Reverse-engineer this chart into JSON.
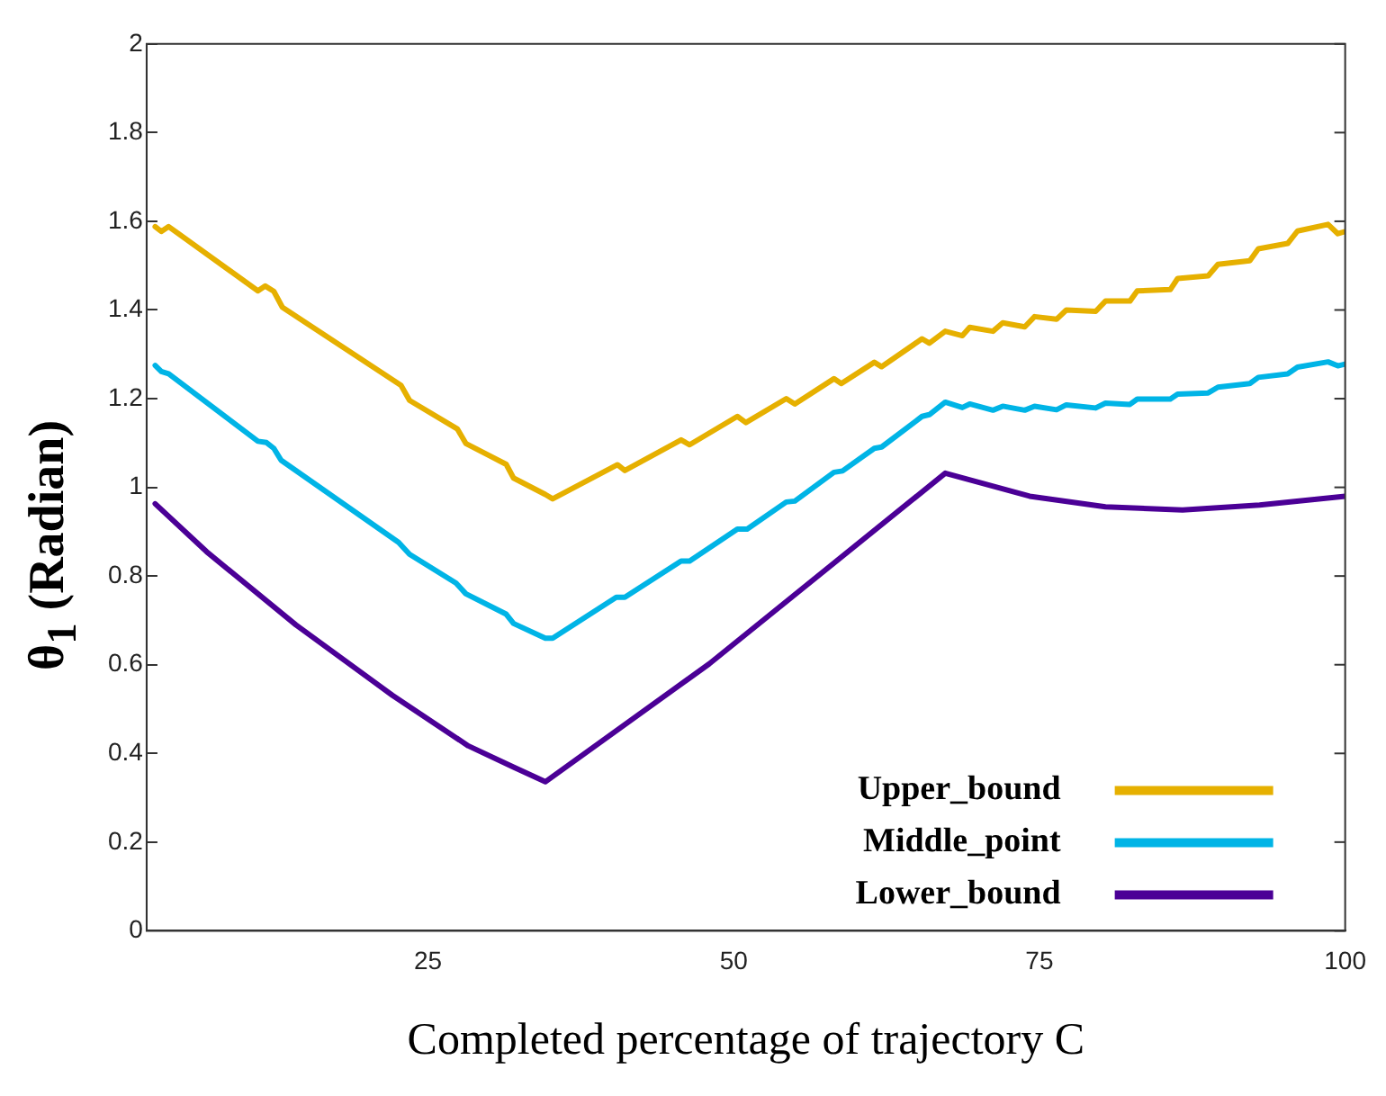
{
  "chart_data": {
    "type": "line",
    "xlabel": "Completed percentage of trajectory C",
    "ylabel": "θ$_{1}$ (Radian)",
    "xlim": [
      2,
      100
    ],
    "xticks": [
      25,
      50,
      75,
      100
    ],
    "ylim": [
      0,
      2
    ],
    "yticks": [
      0,
      0.2,
      0.4,
      0.6,
      0.8,
      1,
      1.2,
      1.4,
      1.6,
      1.8,
      2
    ],
    "grid": false,
    "legend": "bottom right",
    "marker": "none",
    "line_style": "solid",
    "series": [
      {
        "name": "Upper_bound",
        "color": "#e6b000",
        "x": [
          2.7,
          3.2,
          3.8,
          11.1,
          11.7,
          12.4,
          13.1,
          22.8,
          23.5,
          27.4,
          28.1,
          31.4,
          32.0,
          34.6,
          35.2,
          40.5,
          41.1,
          45.7,
          46.4,
          50.3,
          51.0,
          54.3,
          55.0,
          58.2,
          58.8,
          61.5,
          62.1,
          65.4,
          66.0,
          67.3,
          68.7,
          69.3,
          71.2,
          72.0,
          73.8,
          74.6,
          76.4,
          77.2,
          79.6,
          80.4,
          82.4,
          83.0,
          85.7,
          86.3,
          88.8,
          89.6,
          92.2,
          92.9,
          95.3,
          96.1,
          98.6,
          99.4,
          100
        ],
        "values": [
          1.588,
          1.577,
          1.588,
          1.443,
          1.454,
          1.442,
          1.406,
          1.23,
          1.196,
          1.132,
          1.099,
          1.052,
          1.021,
          0.984,
          0.974,
          1.051,
          1.038,
          1.107,
          1.096,
          1.16,
          1.146,
          1.2,
          1.188,
          1.245,
          1.234,
          1.282,
          1.272,
          1.335,
          1.325,
          1.352,
          1.342,
          1.361,
          1.352,
          1.371,
          1.362,
          1.385,
          1.379,
          1.4,
          1.397,
          1.42,
          1.42,
          1.443,
          1.446,
          1.471,
          1.477,
          1.503,
          1.511,
          1.538,
          1.55,
          1.578,
          1.593,
          1.572,
          1.577
        ]
      },
      {
        "name": "Middle_point",
        "color": "#00b4e6",
        "x": [
          2.7,
          3.2,
          3.8,
          11.1,
          11.8,
          12.4,
          13.0,
          22.6,
          23.5,
          27.3,
          28.1,
          31.4,
          32.0,
          34.6,
          35.2,
          40.4,
          41.1,
          45.7,
          46.4,
          50.3,
          51.1,
          54.3,
          55.0,
          58.2,
          58.9,
          61.5,
          62.1,
          65.4,
          66.0,
          67.3,
          68.7,
          69.3,
          71.2,
          72.0,
          73.8,
          74.6,
          76.4,
          77.2,
          79.6,
          80.4,
          82.4,
          83.0,
          85.7,
          86.3,
          88.8,
          89.6,
          92.2,
          92.9,
          95.3,
          96.1,
          98.6,
          99.4,
          100
        ],
        "values": [
          1.275,
          1.261,
          1.256,
          1.104,
          1.101,
          1.088,
          1.061,
          0.876,
          0.849,
          0.784,
          0.76,
          0.714,
          0.693,
          0.66,
          0.66,
          0.752,
          0.752,
          0.834,
          0.834,
          0.906,
          0.906,
          0.967,
          0.969,
          1.034,
          1.037,
          1.088,
          1.091,
          1.16,
          1.164,
          1.192,
          1.18,
          1.188,
          1.174,
          1.183,
          1.174,
          1.183,
          1.175,
          1.186,
          1.179,
          1.19,
          1.187,
          1.199,
          1.199,
          1.21,
          1.213,
          1.226,
          1.234,
          1.248,
          1.256,
          1.271,
          1.283,
          1.274,
          1.278
        ]
      },
      {
        "name": "Lower_bound",
        "color": "#4b0096",
        "x": [
          2.7,
          6.9,
          14.2,
          22.1,
          28.3,
          32.0,
          34.6,
          48.0,
          67.3,
          74.2,
          80.4,
          86.7,
          93.0,
          100
        ],
        "values": [
          0.963,
          0.855,
          0.69,
          0.531,
          0.417,
          0.369,
          0.336,
          0.602,
          1.032,
          0.98,
          0.956,
          0.949,
          0.96,
          0.98
        ]
      }
    ]
  }
}
